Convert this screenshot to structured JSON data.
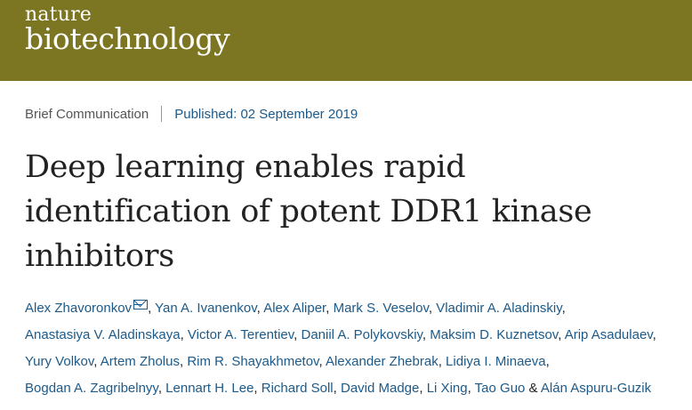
{
  "masthead": {
    "logo_line1": "nature",
    "logo_line2": "biotechnology",
    "color": "#7c7622"
  },
  "meta": {
    "article_type": "Brief Communication",
    "published_label": "Published:",
    "published_date": "02 September 2019"
  },
  "title_lines": [
    "Deep learning enables rapid",
    "identification of potent DDR1 kinase",
    "inhibitors"
  ],
  "authors": [
    "Alex Zhavoronkov",
    "Yan A. Ivanenkov",
    "Alex Aliper",
    "Mark S. Veselov",
    "Vladimir A. Aladinskiy",
    "Anastasiya V. Aladinskaya",
    "Victor A. Terentiev",
    "Daniil A. Polykovskiy",
    "Maksim D. Kuznetsov",
    "Arip Asadulaev",
    "Yury Volkov",
    "Artem Zholus",
    "Rim R. Shayakhmetov",
    "Alexander Zhebrak",
    "Lidiya I. Minaeva",
    "Bogdan A. Zagribelnyy",
    "Lennart H. Lee",
    "Richard Soll",
    "David Madge",
    "Li Xing",
    "Tao Guo",
    "Alán Aspuru-Guzik"
  ],
  "author_separator": ", ",
  "author_last_separator": " & ",
  "corresponding_icon": "mail-icon",
  "link_color": "#1b5a8a"
}
